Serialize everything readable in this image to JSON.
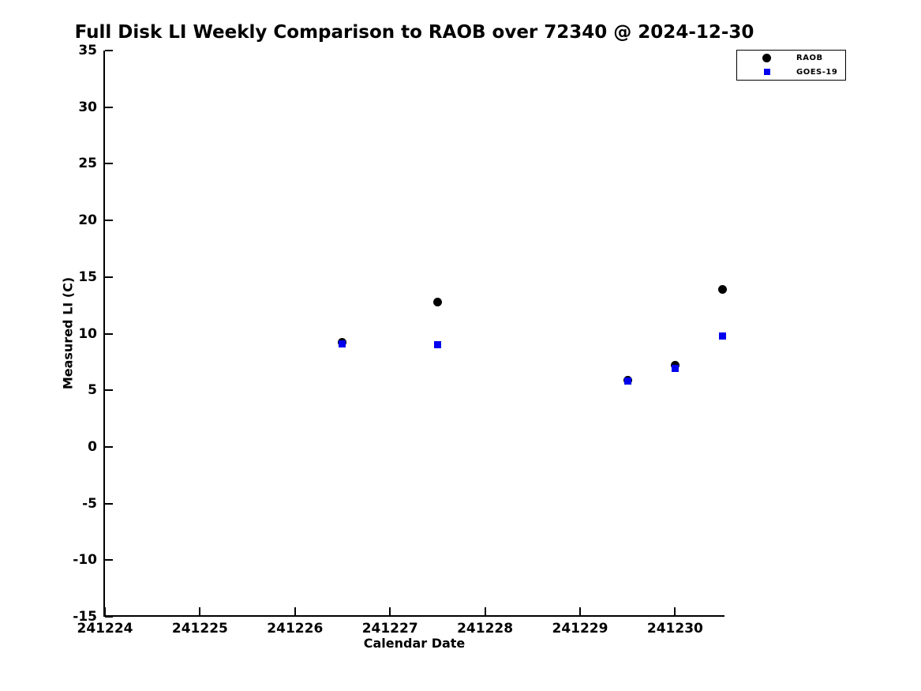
{
  "chart_data": {
    "type": "scatter",
    "title": "Full Disk LI Weekly Comparison to RAOB over 72340 @ 2024-12-30",
    "xlabel": "Calendar Date",
    "ylabel": "Measured LI (C)",
    "xlim": [
      241224,
      241230.52
    ],
    "ylim": [
      -15,
      35
    ],
    "x_ticks": [
      241224,
      241225,
      241226,
      241227,
      241228,
      241229,
      241230
    ],
    "y_ticks": [
      35,
      30,
      25,
      20,
      15,
      10,
      5,
      0,
      -5,
      -10,
      -15
    ],
    "grid": false,
    "legend_position": "top-right",
    "axis_color": "#000000",
    "background_color": "#ffffff",
    "series": [
      {
        "name": "RAOB",
        "marker": "circle",
        "color": "#000000",
        "points": [
          [
            241226.5,
            9.2
          ],
          [
            241227.5,
            12.8
          ],
          [
            241229.5,
            5.9
          ],
          [
            241230.0,
            7.2
          ],
          [
            241230.5,
            13.9
          ]
        ]
      },
      {
        "name": "GOES-19",
        "marker": "square",
        "color": "#0000ee",
        "points": [
          [
            241226.5,
            9.1
          ],
          [
            241227.5,
            9.0
          ],
          [
            241229.5,
            5.8
          ],
          [
            241230.0,
            6.9
          ],
          [
            241230.5,
            9.8
          ]
        ]
      }
    ]
  }
}
